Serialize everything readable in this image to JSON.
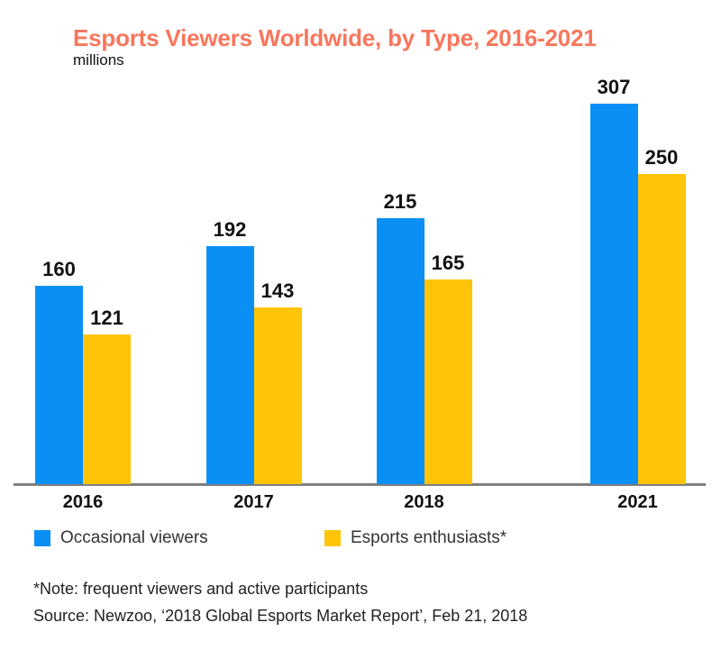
{
  "header": {
    "title": "Esports Viewers Worldwide, by Type, 2016-2021",
    "subtitle": "millions"
  },
  "colors": {
    "title": "#F8765C",
    "blue": "#0A90F5",
    "yellow": "#FFC408",
    "axis": "#7F7F7F"
  },
  "chart_data": {
    "type": "bar",
    "categories": [
      "2016",
      "2017",
      "2018",
      "2021"
    ],
    "series": [
      {
        "name": "Occasional viewers",
        "color_key": "blue",
        "values": [
          160,
          192,
          215,
          307
        ]
      },
      {
        "name": "Esports enthusiasts*",
        "color_key": "yellow",
        "values": [
          121,
          143,
          165,
          250
        ]
      }
    ],
    "title": "Esports Viewers Worldwide, by Type, 2016-2021",
    "xlabel": "",
    "ylabel": "millions",
    "ylim": [
      0,
      330
    ],
    "grid": false,
    "legend_position": "bottom",
    "value_labels_shown": true,
    "note": "time gap: years 2019-2020 omitted, 2021 group spaced further right"
  },
  "legend": {
    "items": [
      {
        "label": "Occasional viewers",
        "color_key": "blue"
      },
      {
        "label": "Esports enthusiasts*",
        "color_key": "yellow"
      }
    ]
  },
  "footer": {
    "note": "*Note: frequent viewers and active participants",
    "source": "Source: Newzoo, ‘2018 Global Esports Market Report’, Feb 21, 2018"
  }
}
